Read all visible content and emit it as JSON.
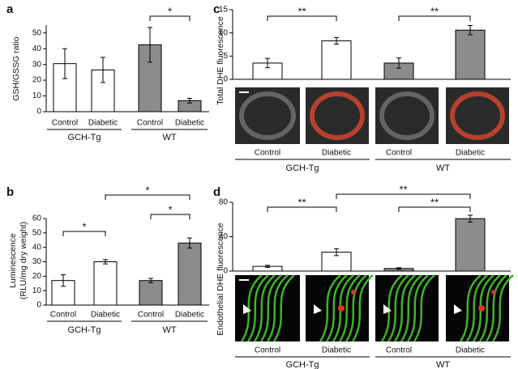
{
  "chart_data": [
    {
      "type": "bar",
      "panel": "a",
      "ylabel": "GSH/GSSG ratio",
      "categories": [
        "Control",
        "Diabetic",
        "Control",
        "Diabetic"
      ],
      "groups": [
        "GCH-Tg",
        "WT"
      ],
      "values": [
        30.5,
        26.5,
        42.5,
        7
      ],
      "errors": [
        9.5,
        8,
        11,
        1.5
      ],
      "colors": [
        "#ffffff",
        "#ffffff",
        "#8c8c8c",
        "#8c8c8c"
      ],
      "ylim": [
        0,
        55
      ],
      "yticks": [
        0,
        10,
        20,
        30,
        40,
        50
      ],
      "significance": [
        "*"
      ]
    },
    {
      "type": "bar",
      "panel": "b",
      "ylabel": [
        "Luminescence",
        "(RLU/mg dry weight)"
      ],
      "categories": [
        "Control",
        "Diabetic",
        "Control",
        "Diabetic"
      ],
      "groups": [
        "GCH-Tg",
        "WT"
      ],
      "values": [
        17,
        30,
        17,
        43
      ],
      "errors": [
        4,
        1.5,
        1.5,
        3.5
      ],
      "colors": [
        "#ffffff",
        "#ffffff",
        "#8c8c8c",
        "#8c8c8c"
      ],
      "ylim": [
        0,
        60
      ],
      "yticks": [
        0,
        10,
        20,
        30,
        40,
        50,
        60
      ],
      "significance": [
        "*",
        "*",
        "*"
      ]
    },
    {
      "type": "bar",
      "panel": "c",
      "ylabel": "Total DHE fluorescence",
      "categories": [
        "Control",
        "Diabetic",
        "Control",
        "Diabetic"
      ],
      "groups": [
        "GCH-Tg",
        "WT"
      ],
      "values": [
        3.5,
        8.3,
        3.5,
        10.6
      ],
      "errors": [
        1,
        0.7,
        1.1,
        1
      ],
      "colors": [
        "#ffffff",
        "#ffffff",
        "#8c8c8c",
        "#8c8c8c"
      ],
      "ylim": [
        0,
        15
      ],
      "yticks": [
        0,
        5,
        10,
        15
      ],
      "significance": [
        "**",
        "**"
      ]
    },
    {
      "type": "bar",
      "panel": "d",
      "ylabel": "Endothelial DHE fluorescence",
      "categories": [
        "Control",
        "Diabetic",
        "Control",
        "Diabetic"
      ],
      "groups": [
        "GCH-Tg",
        "WT"
      ],
      "values": [
        5.5,
        22,
        3,
        61
      ],
      "errors": [
        1.2,
        4,
        1,
        4
      ],
      "colors": [
        "#ffffff",
        "#ffffff",
        "#8c8c8c",
        "#8c8c8c"
      ],
      "ylim": [
        0,
        80
      ],
      "yticks": [
        0,
        40,
        80
      ],
      "significance": [
        "**",
        "**",
        "**"
      ]
    }
  ]
}
